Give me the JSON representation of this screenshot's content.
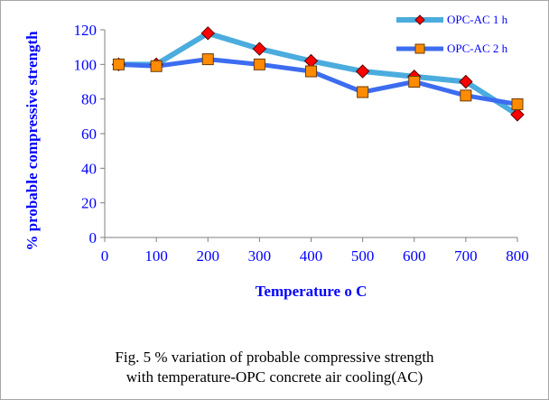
{
  "chart_data": {
    "type": "line",
    "title": "",
    "xlabel": "Temperature o C",
    "ylabel": "% probable compressive strength",
    "x_ticks": [
      "0",
      "100",
      "200",
      "300",
      "400",
      "500",
      "600",
      "700",
      "800"
    ],
    "y_ticks": [
      "0",
      "20",
      "40",
      "60",
      "80",
      "100",
      "120"
    ],
    "xlim": [
      0,
      800
    ],
    "ylim": [
      0,
      120
    ],
    "legend_position": "top-right",
    "grid": false,
    "series": [
      {
        "name": "OPC-AC 1 h",
        "line_color": "#4bacde",
        "marker": "diamond",
        "marker_color": "#ff0000",
        "x": [
          27,
          100,
          200,
          300,
          400,
          500,
          600,
          700,
          800
        ],
        "y": [
          100,
          100,
          118,
          109,
          102,
          96,
          93,
          90,
          71
        ]
      },
      {
        "name": "OPC-AC 2 h",
        "line_color": "#3c6cf0",
        "marker": "square",
        "marker_color": "#ff8c00",
        "x": [
          27,
          100,
          200,
          300,
          400,
          500,
          600,
          700,
          800
        ],
        "y": [
          100,
          99,
          103,
          100,
          96,
          84,
          90,
          82,
          77
        ]
      }
    ]
  },
  "caption": {
    "line1": "Fig. 5 % variation of probable compressive strength",
    "line2": "with temperature-OPC concrete  air cooling(AC)"
  }
}
